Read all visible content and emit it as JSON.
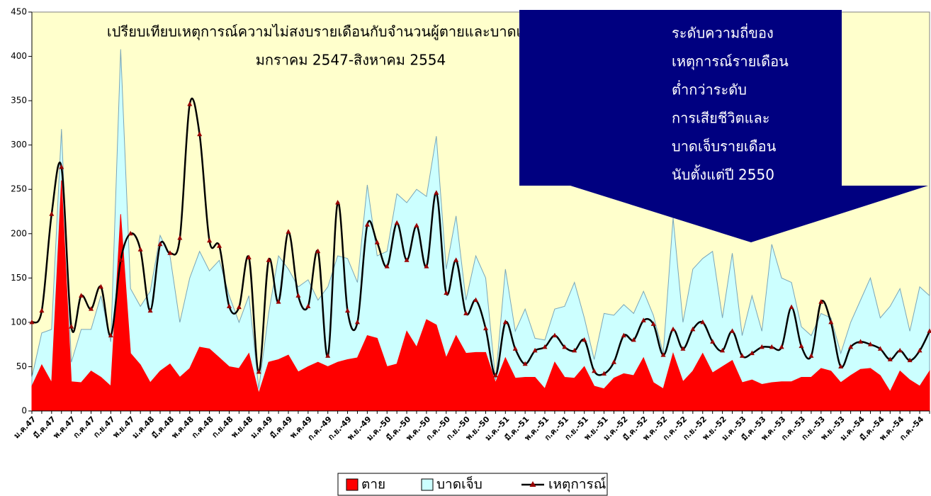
{
  "chart_data": {
    "type": "area",
    "title": "เปรียบเทียบเหตุการณ์ความไม่สงบรายเดือนกับจำนวนผู้ตายและบาดเจ็บรายเดือน",
    "subtitle": "มกราคม 2547-สิงหาคม 2554",
    "annotation": [
      "ระดับความถี่ของ",
      "เหตุการณ์รายเดือน",
      "ต่ำกว่าระดับ",
      "การเสียชีวิตและ",
      "บาดเจ็บรายเดือน",
      "นับตั้งแต่ปี 2550"
    ],
    "categories": [
      "ม.ค.47",
      null,
      "มี.ค.47",
      null,
      "พ.ค.47",
      null,
      "ก.ค.47",
      null,
      "ก.ย.47",
      null,
      "พ.ย.47",
      null,
      "ม.ค.48",
      null,
      "มี.ค.48",
      null,
      "พ.ค.48",
      null,
      "ก.ค.48",
      null,
      "ก.ย.48",
      null,
      "พ.ย.48",
      null,
      "ม.ค.49",
      null,
      "มี.ค.49",
      null,
      "พ.ค.49",
      null,
      "ก.ค.-49",
      null,
      "ก.ย.-49",
      null,
      "พ.ย.-49",
      null,
      "ม.ค.-50",
      null,
      "มี.ค.-50",
      null,
      "พ.ค.-50",
      null,
      "ก.ค.-50",
      null,
      "ก.ย.-50",
      null,
      "พ.ย.-50",
      null,
      "ม.ค.-51",
      null,
      "มี.ค.-51",
      null,
      "พ.ค.-51",
      null,
      "ก.ค.-51",
      null,
      "ก.ย.-51",
      null,
      "พ.ย.-51",
      null,
      "ม.ค.-52",
      null,
      "มี.ค.-52",
      null,
      "พ.ค.-52",
      null,
      "ก.ค.-52",
      null,
      "ก.ย.-52",
      null,
      "พ.ย.-52",
      null,
      "ม.ค.-53",
      null,
      "มี.ค.-53",
      null,
      "พ.ค.-53",
      null,
      "ก.ค.-53",
      null,
      "ก.ย.-53",
      null,
      "พ.ย.-53",
      null,
      "ม.ค.-54",
      null,
      "มี.ค.-54",
      null,
      "พ.ค.-54",
      null,
      "ก.ค.-54",
      null
    ],
    "series": [
      {
        "name": "ตาย",
        "type": "area",
        "color": "#ff0000",
        "values": [
          28,
          52,
          32,
          260,
          33,
          32,
          45,
          38,
          28,
          222,
          65,
          52,
          32,
          45,
          53,
          38,
          48,
          72,
          70,
          60,
          50,
          48,
          65,
          20,
          55,
          58,
          63,
          44,
          50,
          55,
          50,
          55,
          58,
          60,
          85,
          82,
          50,
          53,
          90,
          72,
          103,
          97,
          60,
          85,
          65,
          66,
          66,
          32,
          60,
          37,
          38,
          38,
          25,
          55,
          38,
          37,
          50,
          28,
          25,
          37,
          42,
          40,
          60,
          32,
          25,
          65,
          33,
          45,
          65,
          43,
          50,
          57,
          32,
          35,
          30,
          32,
          33,
          33,
          38,
          38,
          48,
          45,
          32,
          40,
          47,
          48,
          40,
          22,
          45,
          35,
          28,
          45
        ]
      },
      {
        "name": "บาดเจ็บ",
        "type": "area",
        "color": "#ccffff",
        "values": [
          38,
          88,
          92,
          318,
          55,
          92,
          92,
          130,
          78,
          408,
          138,
          118,
          135,
          198,
          175,
          100,
          150,
          180,
          158,
          170,
          130,
          100,
          130,
          25,
          110,
          175,
          160,
          140,
          148,
          125,
          140,
          175,
          172,
          145,
          255,
          175,
          180,
          245,
          235,
          250,
          242,
          310,
          160,
          220,
          125,
          175,
          150,
          35,
          160,
          90,
          115,
          82,
          80,
          115,
          118,
          145,
          105,
          58,
          110,
          108,
          120,
          110,
          135,
          108,
          65,
          218,
          100,
          160,
          172,
          180,
          105,
          178,
          85,
          130,
          90,
          188,
          150,
          145,
          95,
          85,
          110,
          105,
          65,
          100,
          125,
          150,
          105,
          118,
          138,
          90,
          140,
          130
        ]
      },
      {
        "name": "เหตุการณ์",
        "type": "line",
        "color": "#000000",
        "marker_color": "#990000",
        "values": [
          100,
          113,
          222,
          275,
          95,
          130,
          115,
          140,
          85,
          170,
          200,
          182,
          113,
          188,
          178,
          195,
          346,
          312,
          192,
          186,
          118,
          117,
          173,
          44,
          170,
          123,
          202,
          130,
          118,
          180,
          62,
          235,
          113,
          100,
          210,
          190,
          163,
          212,
          170,
          209,
          163,
          246,
          133,
          170,
          110,
          125,
          93,
          40,
          100,
          70,
          53,
          68,
          72,
          85,
          72,
          68,
          80,
          45,
          42,
          55,
          85,
          80,
          102,
          98,
          63,
          92,
          70,
          92,
          100,
          78,
          68,
          90,
          62,
          65,
          72,
          72,
          72,
          117,
          73,
          62,
          123,
          100,
          50,
          72,
          78,
          75,
          70,
          58,
          68,
          57,
          68,
          90
        ]
      }
    ],
    "ylim": [
      0,
      450
    ],
    "yticks": [
      0,
      50,
      100,
      150,
      200,
      250,
      300,
      350,
      400,
      450
    ],
    "plot_background": "#ffffcc",
    "annotation_color": "#000080"
  }
}
